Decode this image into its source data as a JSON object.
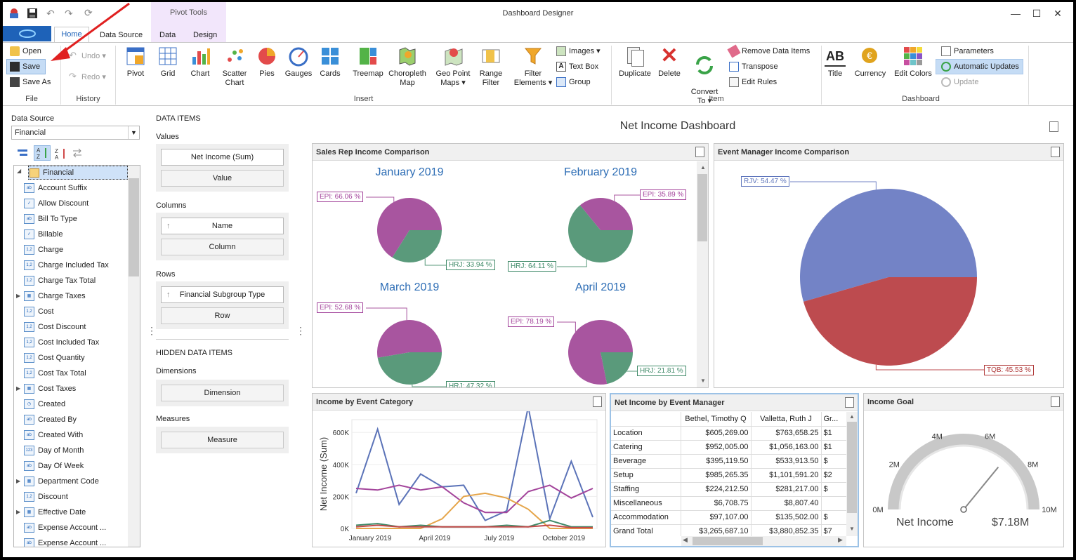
{
  "window": {
    "title": "Dashboard Designer",
    "contextual_tab_group": "Pivot Tools"
  },
  "tabs": [
    {
      "label": "Home"
    },
    {
      "label": "Data Source"
    },
    {
      "label": "Data"
    },
    {
      "label": "Design"
    }
  ],
  "ribbon": {
    "file": {
      "open": "Open",
      "save": "Save",
      "save_as": "Save As",
      "group": "File"
    },
    "history": {
      "undo": "Undo",
      "redo": "Redo",
      "group": "History"
    },
    "insert": {
      "items": [
        "Pivot",
        "Grid",
        "Chart",
        "Scatter\nChart",
        "Pies",
        "Gauges",
        "Cards",
        "Treemap",
        "Choropleth\nMap",
        "Geo Point\nMaps ▾",
        "Range\nFilter",
        "Filter\nElements ▾"
      ],
      "images": "Images ▾",
      "text_box": "Text Box",
      "group_btn": "Group",
      "group": "Insert"
    },
    "item": {
      "duplicate": "Duplicate",
      "delete": "Delete",
      "convert_to": "Convert\nTo ▾",
      "remove_data_items": "Remove Data Items",
      "transpose": "Transpose",
      "edit_rules": "Edit Rules",
      "group": "Item"
    },
    "dashboard": {
      "title": "Title",
      "currency": "Currency",
      "edit_colors": "Edit Colors",
      "parameters": "Parameters",
      "automatic_updates": "Automatic Updates",
      "update": "Update",
      "group": "Dashboard"
    }
  },
  "data_source": {
    "label": "Data Source",
    "value": "Financial"
  },
  "field_tree": {
    "root": "Financial",
    "fields": [
      {
        "label": "Account Suffix",
        "icon": "ab",
        "expandable": false
      },
      {
        "label": "Allow Discount",
        "icon": "check",
        "expandable": false
      },
      {
        "label": "Bill To Type",
        "icon": "ab",
        "expandable": false
      },
      {
        "label": "Billable",
        "icon": "check",
        "expandable": false
      },
      {
        "label": "Charge",
        "icon": "1,2",
        "expandable": false
      },
      {
        "label": "Charge Included Tax",
        "icon": "1,2",
        "expandable": false
      },
      {
        "label": "Charge Tax Total",
        "icon": "1,2",
        "expandable": false
      },
      {
        "label": "Charge Taxes",
        "icon": "table",
        "expandable": true
      },
      {
        "label": "Cost",
        "icon": "1,2",
        "expandable": false
      },
      {
        "label": "Cost Discount",
        "icon": "1,2",
        "expandable": false
      },
      {
        "label": "Cost Included Tax",
        "icon": "1,2",
        "expandable": false
      },
      {
        "label": "Cost Quantity",
        "icon": "1,2",
        "expandable": false
      },
      {
        "label": "Cost Tax Total",
        "icon": "1,2",
        "expandable": false
      },
      {
        "label": "Cost Taxes",
        "icon": "table",
        "expandable": true
      },
      {
        "label": "Created",
        "icon": "clock",
        "expandable": false
      },
      {
        "label": "Created By",
        "icon": "ab",
        "expandable": false
      },
      {
        "label": "Created With",
        "icon": "ab",
        "expandable": false
      },
      {
        "label": "Day of Month",
        "icon": "123",
        "expandable": false
      },
      {
        "label": "Day Of Week",
        "icon": "ab",
        "expandable": false
      },
      {
        "label": "Department Code",
        "icon": "table",
        "expandable": true
      },
      {
        "label": "Discount",
        "icon": "1,2",
        "expandable": false
      },
      {
        "label": "Effective Date",
        "icon": "table",
        "expandable": true
      },
      {
        "label": "Expense Account ...",
        "icon": "ab",
        "expandable": false
      },
      {
        "label": "Expense Account ...",
        "icon": "ab",
        "expandable": false
      }
    ]
  },
  "data_items": {
    "header": "DATA ITEMS",
    "values": "Values",
    "values_field": "Net Income (Sum)",
    "value_ph": "Value",
    "columns": "Columns",
    "columns_field": "Name",
    "column_ph": "Column",
    "rows": "Rows",
    "rows_field": "Financial Subgroup Type",
    "row_ph": "Row",
    "hidden": "HIDDEN DATA ITEMS",
    "dimensions": "Dimensions",
    "dimension_ph": "Dimension",
    "measures": "Measures",
    "measure_ph": "Measure"
  },
  "dashboard": {
    "title": "Net Income Dashboard"
  },
  "sales_rep_panel": {
    "title": "Sales Rep Income Comparison",
    "pies": [
      {
        "title": "January 2019",
        "epi": "EPI: 66.06 %",
        "hrj": "HRJ: 33.94 %",
        "epi_pct": 66.06
      },
      {
        "title": "February 2019",
        "epi": "EPI: 35.89 %",
        "hrj": "HRJ: 64.11 %",
        "epi_pct": 35.89
      },
      {
        "title": "March 2019",
        "epi": "EPI: 52.68 %",
        "hrj": "HRJ: 47.32 %",
        "epi_pct": 52.68
      },
      {
        "title": "April 2019",
        "epi": "EPI: 78.19 %",
        "hrj": "HRJ: 21.81 %",
        "epi_pct": 78.19
      }
    ]
  },
  "event_manager_panel": {
    "title": "Event Manager Income Comparison",
    "rjv": "RJV: 54.47 %",
    "tqb": "TQB: 45.53 %",
    "rjv_pct": 54.47
  },
  "income_category_panel": {
    "title": "Income by Event Category"
  },
  "net_income_grid": {
    "title": "Net Income by Event Manager",
    "columns": [
      "Bethel, Timothy Q",
      "Valletta, Ruth J",
      "Gr..."
    ],
    "rows": [
      {
        "label": "Location",
        "c1": "$605,269.00",
        "c2": "$763,658.25",
        "c3": "$1"
      },
      {
        "label": "Catering",
        "c1": "$952,005.00",
        "c2": "$1,056,163.00",
        "c3": "$1"
      },
      {
        "label": "Beverage",
        "c1": "$395,119.50",
        "c2": "$533,913.50",
        "c3": "$"
      },
      {
        "label": "Setup",
        "c1": "$985,265.35",
        "c2": "$1,101,591.20",
        "c3": "$2"
      },
      {
        "label": "Staffing",
        "c1": "$224,212.50",
        "c2": "$281,217.00",
        "c3": "$"
      },
      {
        "label": "Miscellaneous",
        "c1": "$6,708.75",
        "c2": "$8,807.40",
        "c3": ""
      },
      {
        "label": "Accommodation",
        "c1": "$97,107.00",
        "c2": "$135,502.00",
        "c3": "$"
      },
      {
        "label": "Grand Total",
        "c1": "$3,265,687.10",
        "c2": "$3,880,852.35",
        "c3": "$7"
      }
    ]
  },
  "income_goal_panel": {
    "title": "Income Goal",
    "label": "Net Income",
    "value": "$7.18M",
    "ticks": [
      "0M",
      "2M",
      "4M",
      "6M",
      "8M",
      "10M"
    ],
    "gauge_value": 7.18,
    "gauge_max": 10
  },
  "chart_data": {
    "type": "line",
    "title": "",
    "ylabel": "Net Income (Sum)",
    "xlabel": "",
    "x_ticks": [
      "January 2019",
      "April 2019",
      "July 2019",
      "October 2019"
    ],
    "y_ticks": [
      "0K",
      "200K",
      "400K",
      "600K"
    ],
    "ylim": [
      0,
      680
    ],
    "x": [
      "Jan",
      "Feb",
      "Mar",
      "Apr",
      "May",
      "Jun",
      "Jul",
      "Aug",
      "Sep",
      "Oct",
      "Nov",
      "Dec"
    ],
    "series": [
      {
        "color": "#5b73b8",
        "values": [
          220,
          620,
          150,
          340,
          260,
          270,
          50,
          110,
          760,
          60,
          420,
          70
        ]
      },
      {
        "color": "#a3449b",
        "values": [
          250,
          240,
          270,
          240,
          260,
          160,
          100,
          100,
          230,
          270,
          190,
          250
        ]
      },
      {
        "color": "#e5a54a",
        "values": [
          0,
          0,
          0,
          0,
          60,
          200,
          220,
          190,
          120,
          0,
          0,
          0
        ]
      },
      {
        "color": "#3f8a68",
        "values": [
          20,
          30,
          10,
          20,
          10,
          10,
          10,
          20,
          10,
          50,
          10,
          10
        ]
      },
      {
        "color": "#c24a4a",
        "values": [
          10,
          20,
          10,
          10,
          10,
          10,
          10,
          10,
          10,
          20,
          5,
          5
        ]
      }
    ]
  },
  "colors": {
    "epi": "#a8559f",
    "hrj": "#5a9a7b",
    "rjv": "#7383c6",
    "tqb": "#bd4b4f",
    "accent": "#1e62b8"
  }
}
